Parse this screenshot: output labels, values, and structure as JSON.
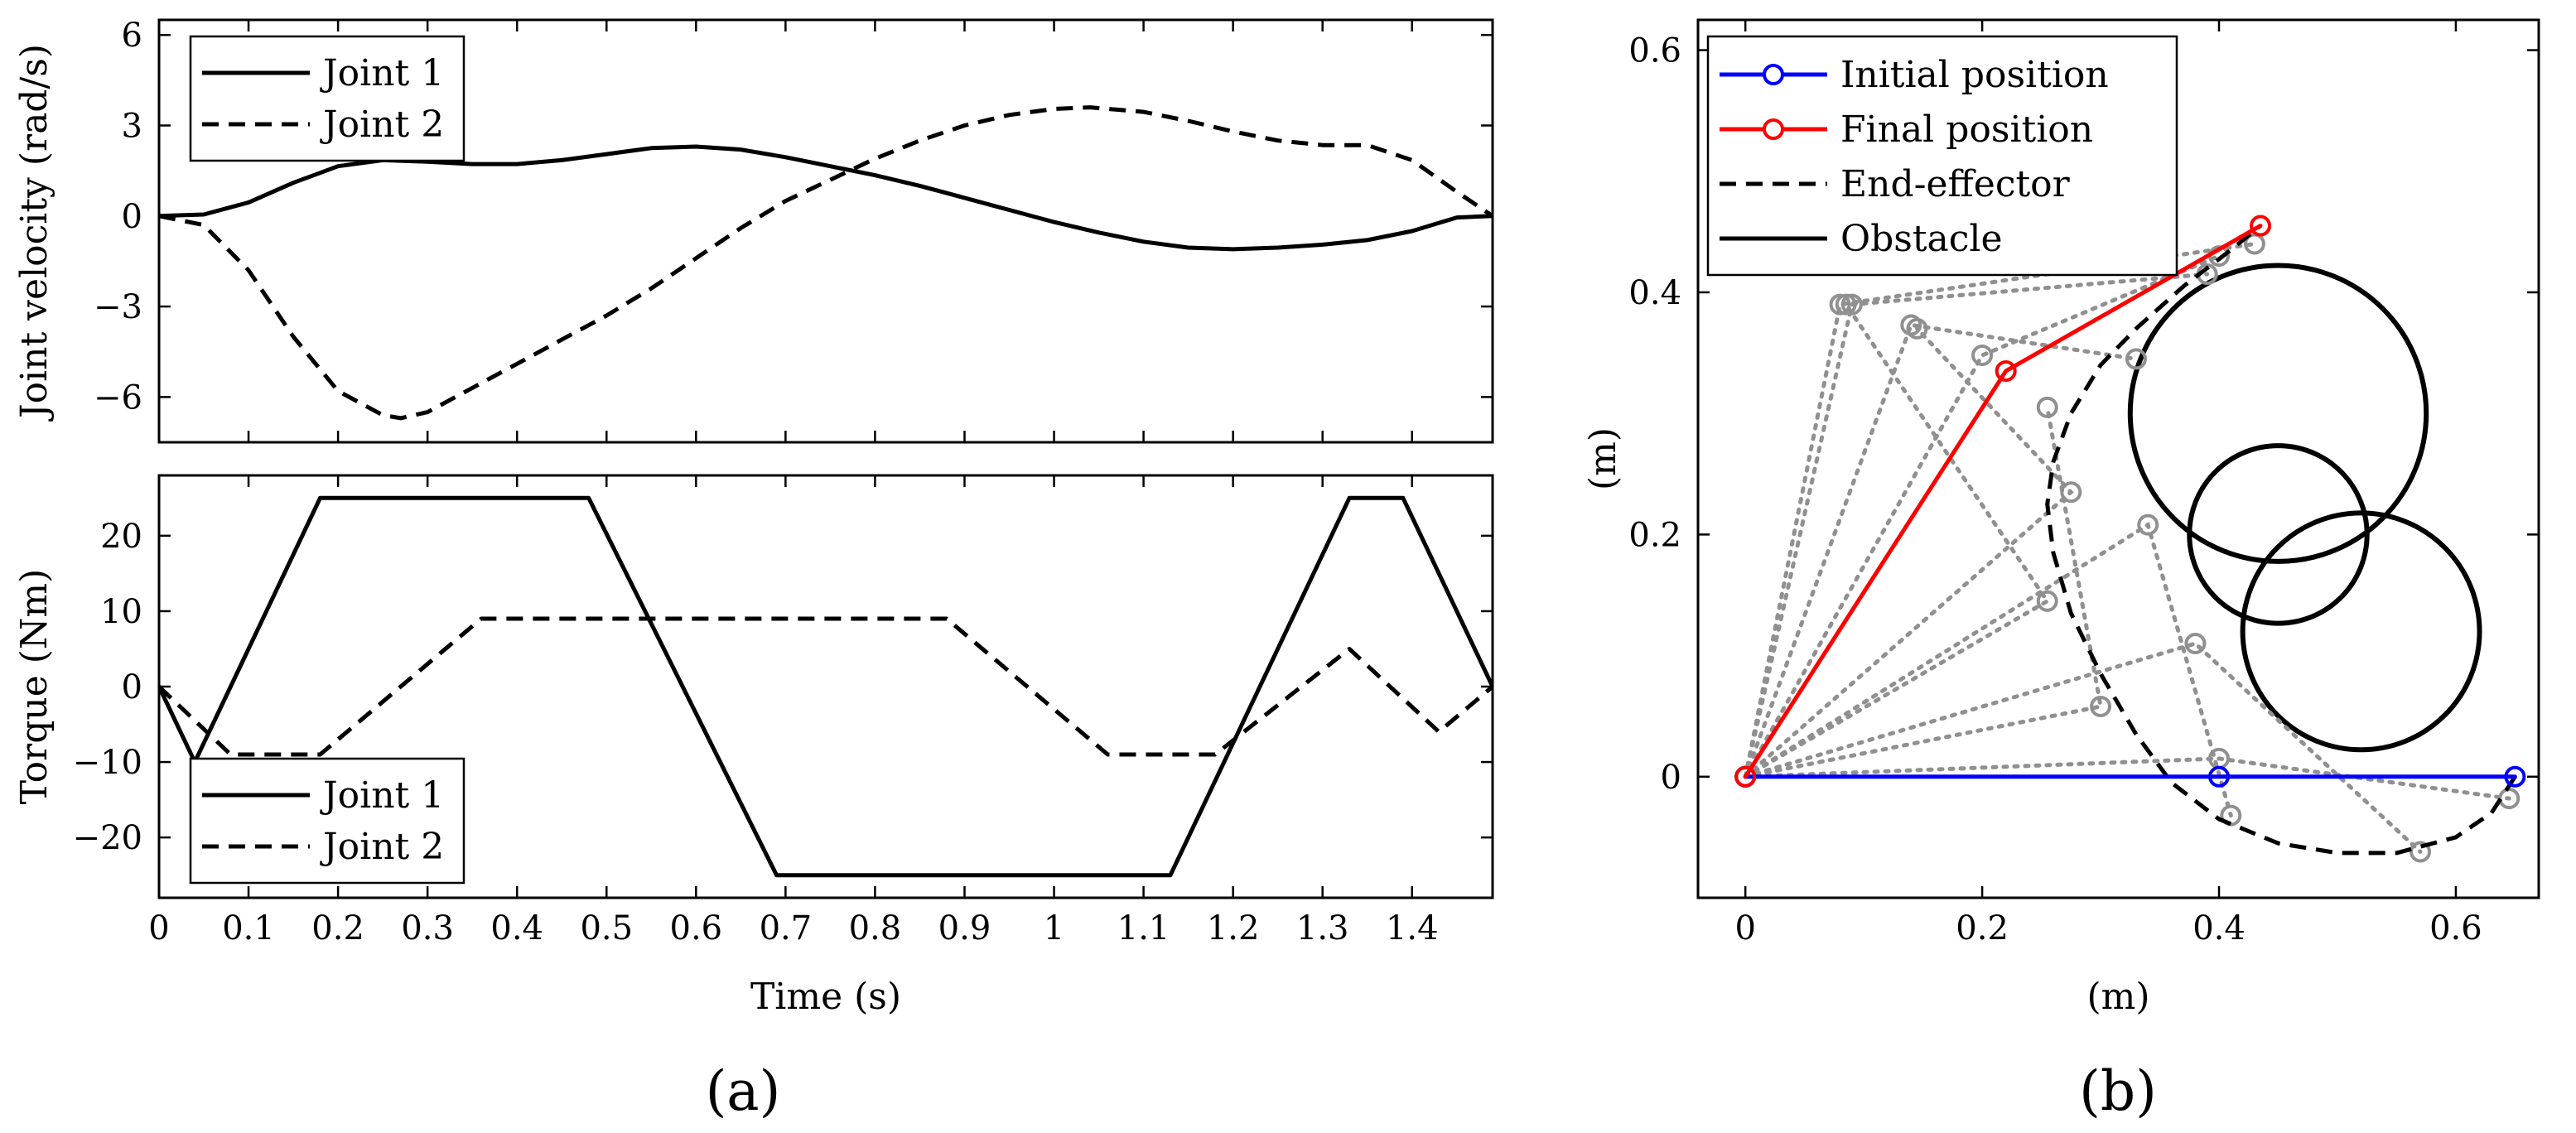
{
  "panel_labels": {
    "a": "(a)",
    "b": "(b)"
  },
  "chart_data": [
    {
      "type": "line",
      "title": "",
      "xlabel": "",
      "ylabel": "Joint velocity (rad/s)",
      "xlim": [
        0,
        1.49
      ],
      "ylim": [
        -7.5,
        6.5
      ],
      "xticks": [
        0,
        0.1,
        0.2,
        0.3,
        0.4,
        0.5,
        0.6,
        0.7,
        0.8,
        0.9,
        1,
        1.1,
        1.2,
        1.3,
        1.4
      ],
      "yticks": [
        -6,
        -3,
        0,
        3,
        6
      ],
      "ytick_labels": [
        "−6",
        "−3",
        "0",
        "3",
        "6"
      ],
      "legend": [
        "Joint 1",
        "Joint 2"
      ],
      "series": [
        {
          "name": "Joint 1",
          "style": "solid",
          "x": [
            0,
            0.05,
            0.1,
            0.15,
            0.2,
            0.25,
            0.3,
            0.35,
            0.4,
            0.45,
            0.5,
            0.55,
            0.6,
            0.65,
            0.7,
            0.75,
            0.8,
            0.85,
            0.9,
            0.95,
            1.0,
            1.05,
            1.1,
            1.15,
            1.2,
            1.25,
            1.3,
            1.35,
            1.4,
            1.45,
            1.49
          ],
          "values": [
            0,
            0.05,
            0.45,
            1.1,
            1.65,
            1.85,
            1.8,
            1.72,
            1.72,
            1.85,
            2.05,
            2.25,
            2.3,
            2.2,
            1.95,
            1.65,
            1.35,
            1.0,
            0.6,
            0.2,
            -0.2,
            -0.55,
            -0.85,
            -1.05,
            -1.1,
            -1.05,
            -0.95,
            -0.8,
            -0.5,
            -0.05,
            0
          ]
        },
        {
          "name": "Joint 2",
          "style": "dashed",
          "x": [
            0,
            0.05,
            0.1,
            0.15,
            0.2,
            0.25,
            0.27,
            0.3,
            0.35,
            0.4,
            0.45,
            0.5,
            0.55,
            0.6,
            0.65,
            0.7,
            0.75,
            0.8,
            0.85,
            0.9,
            0.95,
            1.0,
            1.04,
            1.1,
            1.15,
            1.2,
            1.25,
            1.3,
            1.35,
            1.4,
            1.45,
            1.49
          ],
          "values": [
            0,
            -0.3,
            -1.8,
            -4.0,
            -5.8,
            -6.6,
            -6.7,
            -6.5,
            -5.7,
            -4.9,
            -4.1,
            -3.3,
            -2.4,
            -1.4,
            -0.4,
            0.5,
            1.2,
            1.9,
            2.5,
            3.0,
            3.35,
            3.55,
            3.6,
            3.45,
            3.15,
            2.8,
            2.5,
            2.35,
            2.35,
            1.85,
            0.8,
            0
          ]
        }
      ]
    },
    {
      "type": "line",
      "title": "",
      "xlabel": "Time (s)",
      "ylabel": "Torque (Nm)",
      "xlim": [
        0,
        1.49
      ],
      "ylim": [
        -28,
        28
      ],
      "xticks": [
        0,
        0.1,
        0.2,
        0.3,
        0.4,
        0.5,
        0.6,
        0.7,
        0.8,
        0.9,
        1,
        1.1,
        1.2,
        1.3,
        1.4
      ],
      "yticks": [
        -20,
        -10,
        0,
        10,
        20
      ],
      "ytick_labels": [
        "−20",
        "−10",
        "0",
        "10",
        "20"
      ],
      "legend": [
        "Joint 1",
        "Joint 2"
      ],
      "series": [
        {
          "name": "Joint 1",
          "style": "solid",
          "x": [
            0,
            0.04,
            0.18,
            0.48,
            0.69,
            1.13,
            1.33,
            1.39,
            1.49
          ],
          "values": [
            0,
            -10,
            25,
            25,
            -25,
            -25,
            25,
            25,
            0
          ]
        },
        {
          "name": "Joint 2",
          "style": "dashed",
          "x": [
            0,
            0.08,
            0.18,
            0.36,
            0.88,
            1.06,
            1.18,
            1.33,
            1.43,
            1.49
          ],
          "values": [
            0,
            -9,
            -9,
            9,
            9,
            -9,
            -9,
            5,
            -6,
            0
          ]
        }
      ]
    },
    {
      "type": "line",
      "title": "",
      "xlabel": "(m)",
      "ylabel": "(m)",
      "xlim": [
        -0.04,
        0.67
      ],
      "ylim": [
        -0.1,
        0.625
      ],
      "xticks": [
        0,
        0.2,
        0.4,
        0.6
      ],
      "yticks": [
        0,
        0.2,
        0.4,
        0.6
      ],
      "legend": [
        "Initial position",
        "Final position",
        "End-effector",
        "Obstacle"
      ],
      "colors": {
        "initial": "#0000ff",
        "final": "#ff0000",
        "intermediate": "#909090",
        "end_effector": "#000000",
        "obstacle": "#000000"
      },
      "initial_arm": [
        [
          0,
          0
        ],
        [
          0.4,
          0
        ],
        [
          0.65,
          0
        ]
      ],
      "final_arm": [
        [
          0,
          0
        ],
        [
          0.22,
          0.335
        ],
        [
          0.435,
          0.455
        ]
      ],
      "intermediate_arms": [
        [
          [
            0,
            0
          ],
          [
            0.4,
            0.015
          ],
          [
            0.645,
            -0.018
          ]
        ],
        [
          [
            0,
            0
          ],
          [
            0.38,
            0.11
          ],
          [
            0.57,
            -0.062
          ]
        ],
        [
          [
            0,
            0
          ],
          [
            0.34,
            0.208
          ],
          [
            0.41,
            -0.032
          ]
        ],
        [
          [
            0,
            0
          ],
          [
            0.3,
            0.058
          ],
          [
            0.255,
            0.305
          ]
        ],
        [
          [
            0,
            0
          ],
          [
            0.255,
            0.145
          ],
          [
            0.085,
            0.39
          ]
        ],
        [
          [
            0,
            0
          ],
          [
            0.275,
            0.235
          ],
          [
            0.145,
            0.37
          ]
        ],
        [
          [
            0,
            0
          ],
          [
            0.14,
            0.373
          ],
          [
            0.33,
            0.345
          ]
        ],
        [
          [
            0,
            0
          ],
          [
            0.09,
            0.39
          ],
          [
            0.39,
            0.415
          ]
        ],
        [
          [
            0,
            0
          ],
          [
            0.08,
            0.39
          ],
          [
            0.43,
            0.44
          ]
        ],
        [
          [
            0,
            0
          ],
          [
            0.2,
            0.348
          ],
          [
            0.4,
            0.43
          ]
        ]
      ],
      "end_effector_path": {
        "x": [
          0.65,
          0.63,
          0.6,
          0.55,
          0.5,
          0.45,
          0.4,
          0.36,
          0.33,
          0.3,
          0.275,
          0.26,
          0.255,
          0.26,
          0.275,
          0.3,
          0.33,
          0.37,
          0.41,
          0.435
        ],
        "y": [
          0,
          -0.03,
          -0.05,
          -0.063,
          -0.063,
          -0.055,
          -0.035,
          -0.005,
          0.035,
          0.085,
          0.135,
          0.185,
          0.225,
          0.26,
          0.3,
          0.34,
          0.37,
          0.405,
          0.435,
          0.455
        ]
      },
      "obstacles": [
        {
          "cx": 0.45,
          "cy": 0.3,
          "r": 0.125
        },
        {
          "cx": 0.45,
          "cy": 0.2,
          "r": 0.075
        },
        {
          "cx": 0.52,
          "cy": 0.12,
          "r": 0.1
        }
      ]
    }
  ]
}
